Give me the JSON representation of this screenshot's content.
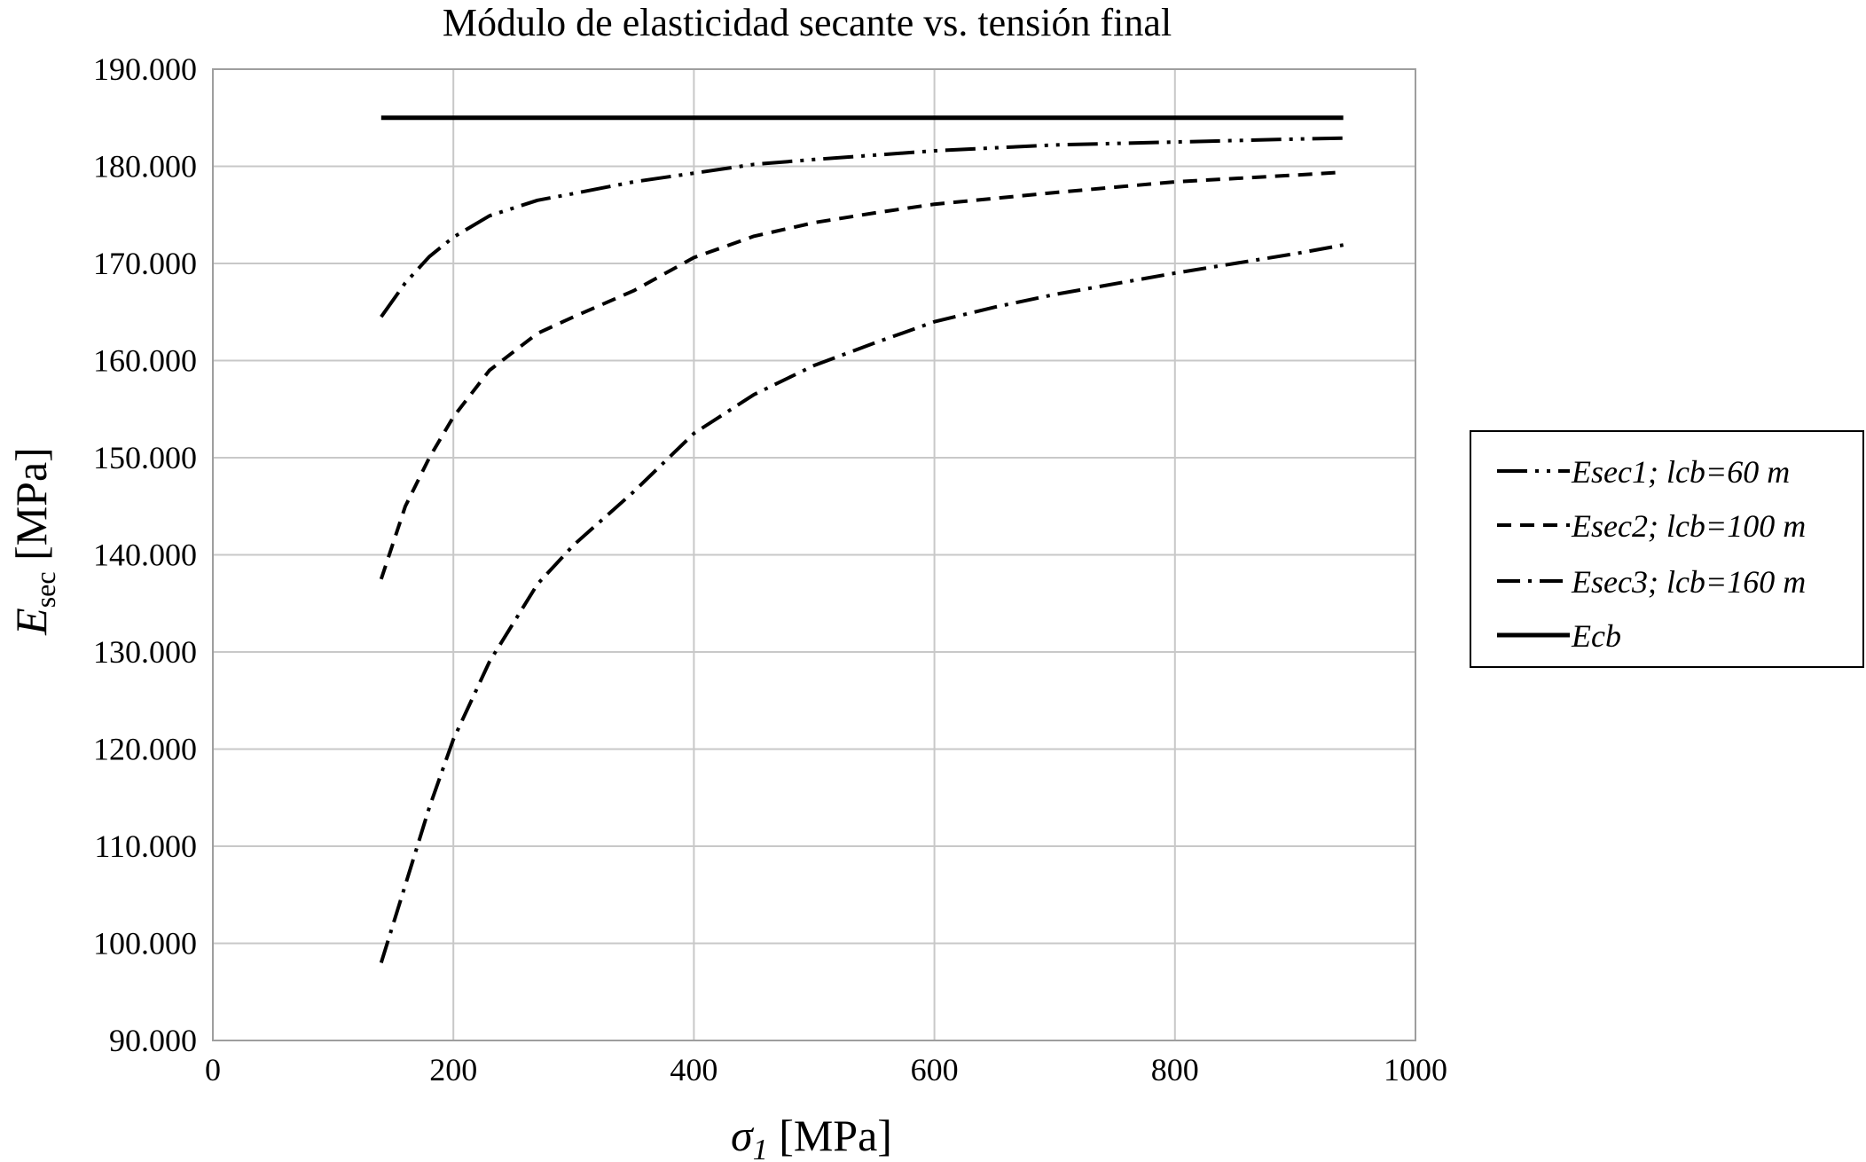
{
  "chart_data": {
    "type": "line",
    "title": "Módulo de elasticidad secante vs. tensión final",
    "xlabel": {
      "symbol": "σ",
      "sub": "1",
      "unit": " [MPa]"
    },
    "ylabel": {
      "symbol": "E",
      "sub": "sec",
      "unit": " [MPa]"
    },
    "xlim": [
      0,
      1000
    ],
    "ylim": [
      90000,
      190000
    ],
    "x_ticks": [
      0,
      200,
      400,
      600,
      800,
      1000
    ],
    "x_tick_labels": [
      "0",
      "200",
      "400",
      "600",
      "800",
      "1000"
    ],
    "y_ticks": [
      90000,
      100000,
      110000,
      120000,
      130000,
      140000,
      150000,
      160000,
      170000,
      180000,
      190000
    ],
    "y_tick_labels": [
      "90.000",
      "100.000",
      "110.000",
      "120.000",
      "130.000",
      "140.000",
      "150.000",
      "160.000",
      "170.000",
      "180.000",
      "190.000"
    ],
    "grid": true,
    "legend_position": "right",
    "series": [
      {
        "name": "Esec1; lcb=60 m",
        "dash": "long-dash-dot-dot",
        "points": [
          [
            140,
            164500
          ],
          [
            160,
            168000
          ],
          [
            180,
            170700
          ],
          [
            200,
            172700
          ],
          [
            230,
            174900
          ],
          [
            270,
            176500
          ],
          [
            300,
            177200
          ],
          [
            350,
            178400
          ],
          [
            400,
            179300
          ],
          [
            450,
            180200
          ],
          [
            500,
            180700
          ],
          [
            600,
            181600
          ],
          [
            700,
            182200
          ],
          [
            800,
            182500
          ],
          [
            900,
            182800
          ],
          [
            940,
            182900
          ]
        ]
      },
      {
        "name": "Esec2; lcb=100 m",
        "dash": "dashed",
        "points": [
          [
            140,
            137500
          ],
          [
            160,
            145000
          ],
          [
            180,
            150000
          ],
          [
            200,
            154200
          ],
          [
            230,
            159000
          ],
          [
            270,
            162800
          ],
          [
            300,
            164500
          ],
          [
            350,
            167200
          ],
          [
            400,
            170600
          ],
          [
            450,
            172800
          ],
          [
            500,
            174200
          ],
          [
            550,
            175200
          ],
          [
            600,
            176100
          ],
          [
            700,
            177300
          ],
          [
            800,
            178400
          ],
          [
            900,
            179100
          ],
          [
            940,
            179400
          ]
        ]
      },
      {
        "name": "Esec3; lcb=160 m",
        "dash": "dash-dot",
        "points": [
          [
            140,
            98000
          ],
          [
            160,
            106000
          ],
          [
            180,
            114000
          ],
          [
            200,
            121000
          ],
          [
            230,
            129000
          ],
          [
            270,
            137000
          ],
          [
            300,
            141000
          ],
          [
            350,
            146500
          ],
          [
            400,
            152500
          ],
          [
            450,
            156500
          ],
          [
            500,
            159500
          ],
          [
            550,
            161800
          ],
          [
            600,
            164000
          ],
          [
            650,
            165500
          ],
          [
            700,
            166800
          ],
          [
            800,
            169000
          ],
          [
            900,
            171000
          ],
          [
            940,
            171900
          ]
        ]
      },
      {
        "name": "Ecb",
        "dash": "solid",
        "points": [
          [
            140,
            185000
          ],
          [
            940,
            185000
          ]
        ]
      }
    ]
  }
}
